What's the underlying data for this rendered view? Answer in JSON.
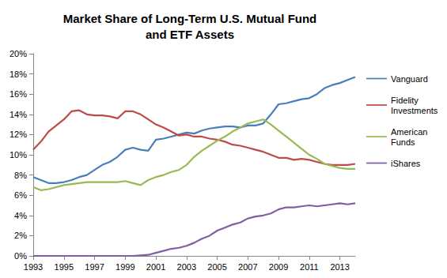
{
  "chart_data": {
    "type": "line",
    "title": "Market Share of Long-Term U.S. Mutual Fund\nand ETF Assets",
    "x": [
      1993,
      1993.5,
      1994,
      1994.5,
      1995,
      1995.5,
      1996,
      1996.5,
      1997,
      1997.5,
      1998,
      1998.5,
      1999,
      1999.5,
      2000,
      2000.5,
      2001,
      2001.5,
      2002,
      2002.5,
      2003,
      2003.5,
      2004,
      2004.5,
      2005,
      2005.5,
      2006,
      2006.5,
      2007,
      2007.5,
      2008,
      2008.5,
      2009,
      2009.5,
      2010,
      2010.5,
      2011,
      2011.5,
      2012,
      2012.5,
      2013,
      2013.5,
      2014
    ],
    "series": [
      {
        "name": "Vanguard",
        "color": "#4a7ebb",
        "values": [
          7.8,
          7.5,
          7.2,
          7.2,
          7.3,
          7.5,
          7.8,
          8.0,
          8.5,
          9.0,
          9.3,
          9.8,
          10.5,
          10.7,
          10.5,
          10.4,
          11.5,
          11.6,
          11.8,
          12.0,
          12.2,
          12.1,
          12.4,
          12.6,
          12.7,
          12.8,
          12.8,
          12.7,
          12.9,
          12.9,
          13.1,
          14.0,
          15.0,
          15.1,
          15.3,
          15.5,
          15.6,
          16.0,
          16.6,
          16.9,
          17.1,
          17.4,
          17.7
        ]
      },
      {
        "name": "Fidelity Investments",
        "color": "#be4b48",
        "values": [
          10.5,
          11.3,
          12.3,
          12.9,
          13.5,
          14.3,
          14.4,
          14.0,
          13.9,
          13.9,
          13.8,
          13.6,
          14.3,
          14.3,
          14.0,
          13.5,
          13.0,
          12.7,
          12.3,
          11.9,
          12.0,
          11.8,
          11.8,
          11.6,
          11.5,
          11.3,
          11.0,
          10.9,
          10.7,
          10.5,
          10.3,
          10.0,
          9.7,
          9.7,
          9.5,
          9.6,
          9.5,
          9.3,
          9.1,
          9.0,
          9.0,
          9.0,
          9.1
        ]
      },
      {
        "name": "American Funds",
        "color": "#98b954",
        "values": [
          6.8,
          6.5,
          6.6,
          6.8,
          7.0,
          7.1,
          7.2,
          7.3,
          7.3,
          7.3,
          7.3,
          7.3,
          7.4,
          7.2,
          7.0,
          7.5,
          7.8,
          8.0,
          8.3,
          8.5,
          9.0,
          9.8,
          10.4,
          10.9,
          11.4,
          11.8,
          12.3,
          12.7,
          13.1,
          13.3,
          13.5,
          13.0,
          12.4,
          11.8,
          11.2,
          10.6,
          10.0,
          9.6,
          9.1,
          8.9,
          8.7,
          8.6,
          8.6
        ]
      },
      {
        "name": "iShares",
        "color": "#7d60a0",
        "values": [
          0,
          0,
          0,
          0,
          0,
          0,
          0,
          0,
          0,
          0,
          0,
          0,
          0,
          0,
          0.05,
          0.1,
          0.3,
          0.5,
          0.7,
          0.8,
          1.0,
          1.3,
          1.7,
          2.0,
          2.5,
          2.8,
          3.1,
          3.3,
          3.7,
          3.9,
          4.0,
          4.2,
          4.6,
          4.8,
          4.8,
          4.9,
          5.0,
          4.9,
          5.0,
          5.1,
          5.2,
          5.1,
          5.2
        ]
      }
    ],
    "xlim": [
      1993,
      2014
    ],
    "xticks": [
      1993,
      1995,
      1997,
      1999,
      2001,
      2003,
      2005,
      2007,
      2009,
      2011,
      2013
    ],
    "ylim": [
      0,
      20
    ],
    "yticks": [
      {
        "value": 0,
        "label": "0%"
      },
      {
        "value": 2,
        "label": "2%"
      },
      {
        "value": 4,
        "label": "4%"
      },
      {
        "value": 6,
        "label": "6%"
      },
      {
        "value": 8,
        "label": "8%"
      },
      {
        "value": 10,
        "label": "10%"
      },
      {
        "value": 12,
        "label": "12%"
      },
      {
        "value": 14,
        "label": "14%"
      },
      {
        "value": 16,
        "label": "16%"
      },
      {
        "value": 18,
        "label": "18%"
      },
      {
        "value": 20,
        "label": "20%"
      }
    ],
    "grid": false,
    "legend": "right"
  }
}
